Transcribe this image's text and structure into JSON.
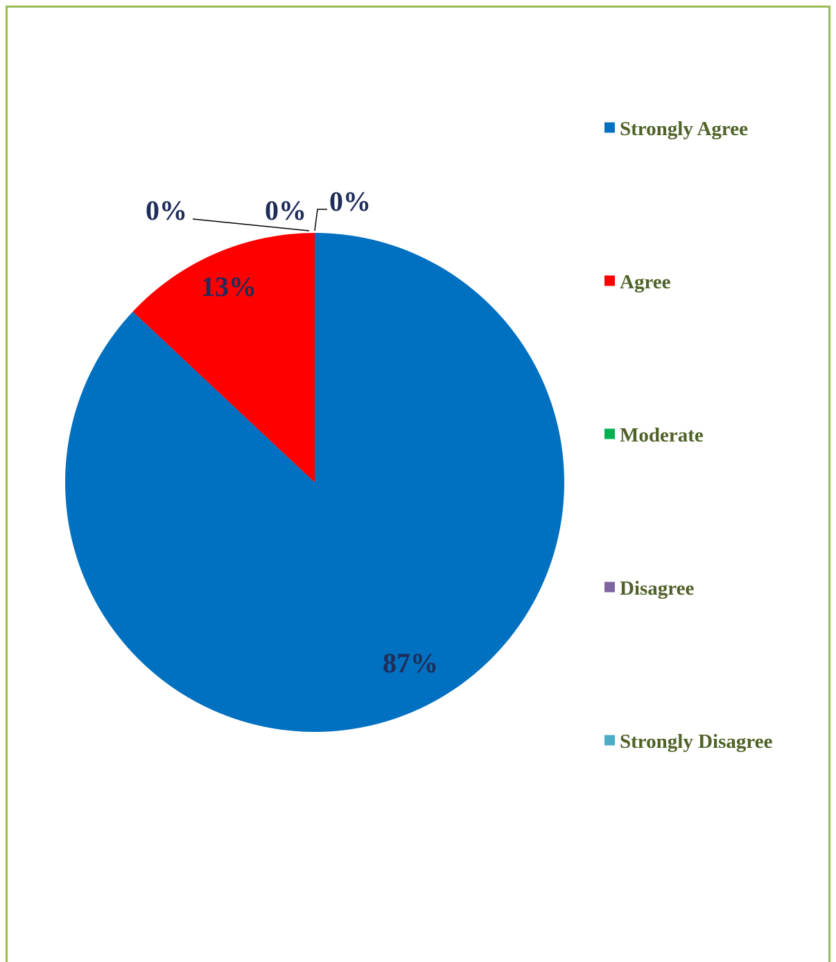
{
  "chart_data": {
    "type": "pie",
    "categories": [
      "Strongly Agree",
      "Agree",
      "Moderate",
      "Disagree",
      "Strongly Disagree"
    ],
    "values": [
      87,
      13,
      0,
      0,
      0
    ],
    "labels": [
      "87%",
      "13%",
      "0%",
      "0%",
      "0%"
    ],
    "colors": [
      "#0070c0",
      "#ff0000",
      "#00b050",
      "#8064a2",
      "#4bacc6"
    ],
    "label_color": "#1f2d5a",
    "legend_text_color": "#4f6228",
    "border_color": "#9bbb59",
    "legend_position": "right"
  }
}
